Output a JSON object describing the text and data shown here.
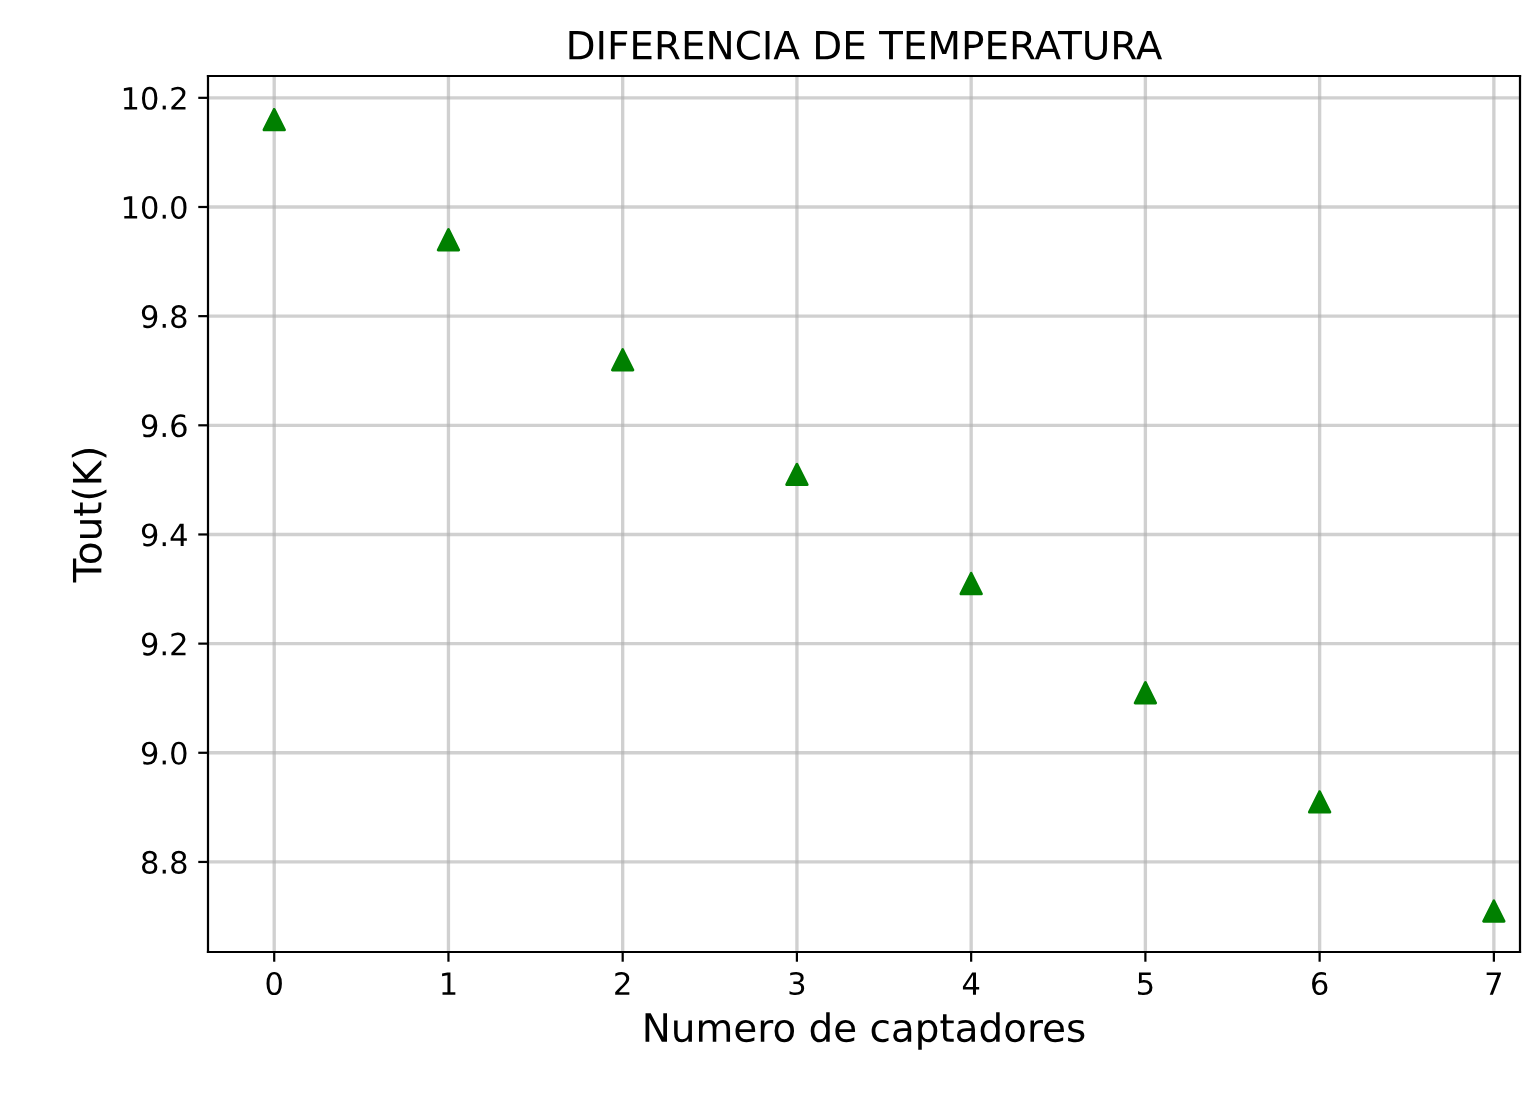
{
  "chart_data": {
    "type": "scatter",
    "title": "DIFERENCIA DE TEMPERATURA",
    "xlabel": "Numero de captadores",
    "ylabel": "Tout(K)",
    "x": [
      0,
      1,
      2,
      3,
      4,
      5,
      6,
      7
    ],
    "series": [
      {
        "color": "#008000",
        "values": [
          10.16,
          9.94,
          9.72,
          9.51,
          9.31,
          9.11,
          8.91,
          8.71
        ]
      }
    ],
    "xlim": [
      -0.38,
      7.15
    ],
    "xticks": [
      0,
      1,
      2,
      3,
      4,
      5,
      6,
      7
    ],
    "ylim": [
      8.635,
      10.24
    ],
    "yticks": [
      {
        "value": 8.8,
        "label": "8.8"
      },
      {
        "value": 9.0,
        "label": "9.0"
      },
      {
        "value": 9.2,
        "label": "9.2"
      },
      {
        "value": 9.4,
        "label": "9.4"
      },
      {
        "value": 9.6,
        "label": "9.6"
      },
      {
        "value": 9.8,
        "label": "9.8"
      },
      {
        "value": 10.0,
        "label": "10.0"
      },
      {
        "value": 10.2,
        "label": "10.2"
      }
    ],
    "grid": true,
    "marker": "triangle"
  }
}
